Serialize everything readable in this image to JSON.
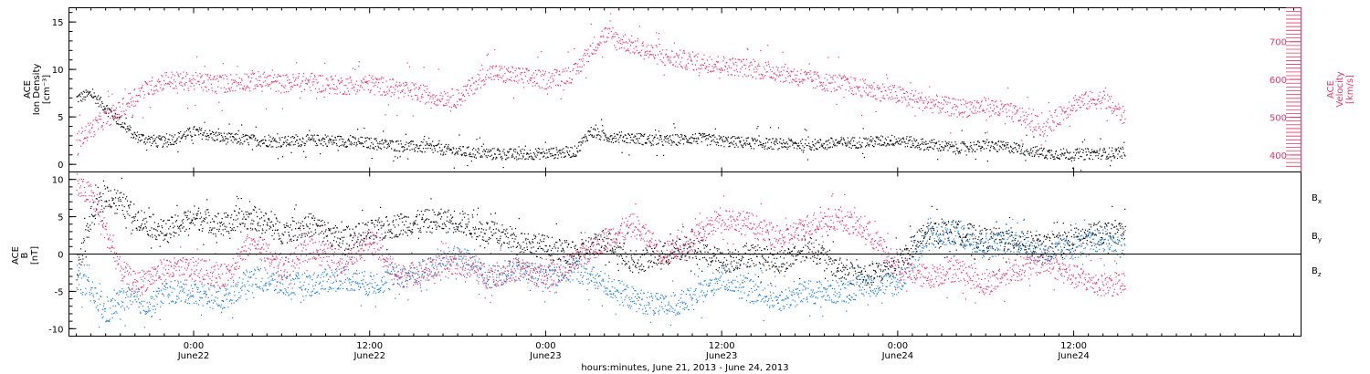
{
  "colors": {
    "black": "#000000",
    "pink": "#e8336b",
    "blue": "#1a7fe0"
  },
  "xaxis": {
    "title": "hours:minutes, June 21, 2013 - June 24, 2013",
    "range_hours": [
      -8.5,
      75.5
    ],
    "ticks": [
      {
        "h": 0,
        "time": "0:00",
        "date": "June22"
      },
      {
        "h": 12,
        "time": "12:00",
        "date": "June22"
      },
      {
        "h": 24,
        "time": "0:00",
        "date": "June23"
      },
      {
        "h": 36,
        "time": "12:00",
        "date": "June23"
      },
      {
        "h": 48,
        "time": "0:00",
        "date": "June24"
      },
      {
        "h": 60,
        "time": "12:00",
        "date": "June24"
      }
    ]
  },
  "chart_data": [
    {
      "type": "scatter",
      "panel": "top",
      "ylabel_left": [
        "ACE",
        "Ion Density",
        "[cm⁻³]"
      ],
      "ylabel_right": [
        "ACE",
        "Velocity",
        "[km/s]"
      ],
      "ylim_left": [
        -0.8,
        16.5
      ],
      "ylim_right": [
        355,
        790
      ],
      "yticks_left": [
        "0",
        "5",
        "10",
        "15"
      ],
      "yticks_right": [
        "400",
        "500",
        "600",
        "700"
      ],
      "series": [
        {
          "axis": "left",
          "color": "#000000",
          "x": [
            -8,
            -7,
            -6,
            -5,
            -4,
            -3,
            -2,
            0,
            2,
            4,
            6,
            8,
            10,
            12,
            14,
            16,
            18,
            20,
            22,
            24,
            26,
            27,
            28,
            30,
            32,
            34,
            36,
            38,
            40,
            42,
            44,
            46,
            48,
            50,
            52,
            54,
            56,
            58,
            60,
            62,
            63.5
          ],
          "values": [
            7.0,
            7.5,
            6.0,
            4.5,
            3.0,
            2.6,
            2.4,
            3.5,
            2.8,
            2.6,
            2.4,
            2.6,
            2.5,
            2.3,
            2.0,
            1.8,
            1.4,
            1.2,
            1.1,
            1.2,
            1.4,
            3.5,
            3.0,
            2.8,
            2.5,
            2.8,
            2.5,
            2.3,
            2.2,
            2.1,
            2.3,
            2.4,
            2.6,
            2.1,
            1.8,
            2.0,
            1.8,
            1.2,
            1.1,
            1.2,
            1.3
          ]
        },
        {
          "axis": "right",
          "color": "#e8336b",
          "x": [
            -8,
            -7,
            -6,
            -5,
            -4,
            -3,
            -2,
            0,
            2,
            4,
            6,
            8,
            10,
            12,
            14,
            16,
            18,
            20,
            22,
            24,
            26,
            27,
            28,
            30,
            32,
            34,
            36,
            38,
            40,
            42,
            44,
            46,
            48,
            50,
            52,
            54,
            56,
            58,
            60,
            62,
            63.5
          ],
          "values": [
            440,
            470,
            500,
            520,
            560,
            580,
            600,
            595,
            590,
            600,
            590,
            595,
            585,
            590,
            575,
            560,
            550,
            620,
            610,
            600,
            620,
            680,
            720,
            690,
            660,
            650,
            640,
            630,
            620,
            600,
            590,
            575,
            560,
            540,
            525,
            530,
            510,
            470,
            540,
            550,
            500
          ]
        }
      ]
    },
    {
      "type": "scatter",
      "panel": "bottom",
      "ylabel_left": [
        "ACE",
        "B",
        "[nT]"
      ],
      "ylim": [
        -11,
        11
      ],
      "yticks": [
        "-10",
        "-5",
        "0",
        "5",
        "10"
      ],
      "legend": [
        "Bx",
        "By",
        "Bz"
      ],
      "series": [
        {
          "name": "Bx",
          "color": "#000000",
          "x": [
            -8,
            -7,
            -6,
            -5,
            -4,
            -3,
            -2,
            0,
            2,
            4,
            6,
            8,
            10,
            12,
            14,
            16,
            18,
            20,
            22,
            24,
            26,
            28,
            30,
            32,
            34,
            36,
            38,
            40,
            42,
            44,
            46,
            48,
            50,
            52,
            54,
            56,
            58,
            60,
            62,
            63.5
          ],
          "values": [
            -2,
            5,
            8,
            7,
            5,
            4,
            3,
            5,
            4,
            5,
            3,
            4,
            2,
            3,
            4,
            4.5,
            4.5,
            3,
            2,
            1,
            0,
            2,
            -1,
            0,
            1,
            -1,
            0,
            -1,
            1,
            -2,
            -3,
            -1,
            3,
            3,
            2,
            2,
            1,
            2,
            3,
            3
          ]
        },
        {
          "name": "By",
          "color": "#1a7fe0",
          "x": [
            -8,
            -7,
            -6,
            -5,
            -4,
            -3,
            -2,
            0,
            2,
            4,
            6,
            8,
            10,
            12,
            14,
            16,
            18,
            20,
            22,
            24,
            26,
            28,
            30,
            32,
            34,
            36,
            38,
            40,
            42,
            44,
            46,
            48,
            50,
            52,
            54,
            56,
            58,
            60,
            62,
            63.5
          ],
          "values": [
            -3,
            -5,
            -8,
            -6,
            -6,
            -7,
            -5,
            -5,
            -6,
            -3,
            -4,
            -4,
            -3,
            -4,
            -3,
            -2,
            0,
            -3,
            -2,
            -3,
            -2,
            -4,
            -6,
            -7,
            -6,
            -3,
            -5,
            -6,
            -5,
            -5,
            -4,
            -4,
            2,
            3,
            1,
            2,
            0,
            1,
            2,
            1
          ]
        },
        {
          "name": "Bz",
          "color": "#e8336b",
          "x": [
            -8,
            -7,
            -6,
            -5,
            -4,
            -3,
            -2,
            0,
            2,
            4,
            6,
            8,
            10,
            12,
            14,
            16,
            18,
            20,
            22,
            24,
            26,
            28,
            30,
            32,
            34,
            36,
            38,
            40,
            42,
            44,
            46,
            48,
            50,
            52,
            54,
            56,
            58,
            60,
            62,
            63.5
          ],
          "values": [
            9,
            8,
            3,
            -2,
            -4,
            -3,
            -2,
            -2,
            -3,
            2,
            -2,
            1,
            -1,
            2,
            -3,
            -2,
            -1,
            -3,
            -2,
            -3,
            -1,
            2,
            4,
            0,
            2,
            5,
            4,
            2,
            4,
            5,
            3,
            -2,
            -3,
            -2,
            -4,
            -2,
            -1,
            -3,
            -4,
            -4
          ]
        }
      ]
    }
  ]
}
